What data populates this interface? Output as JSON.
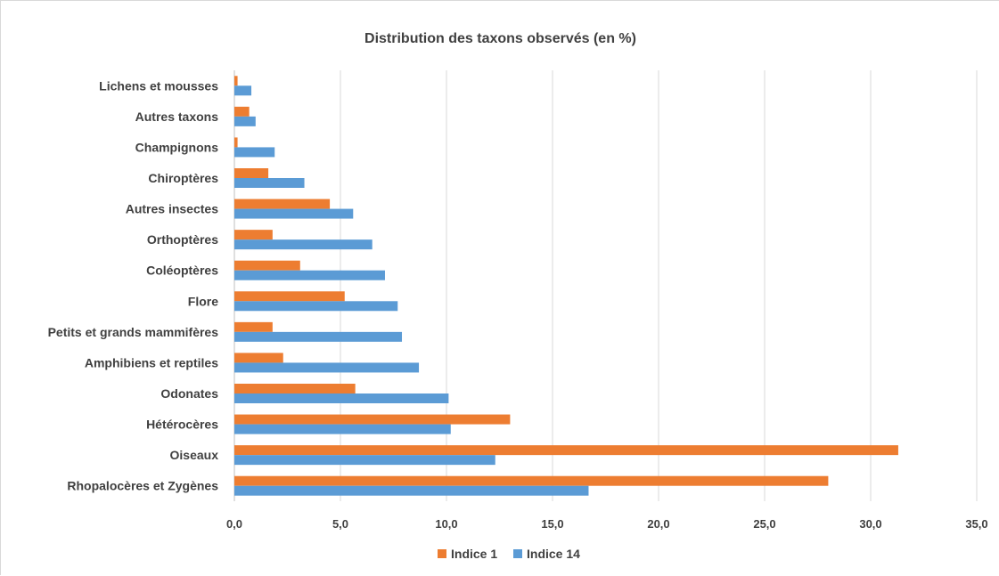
{
  "chart_data": {
    "type": "bar",
    "orientation": "horizontal",
    "title": "Distribution des taxons observés (en %)",
    "xlabel": "",
    "ylabel": "",
    "xlim": [
      0,
      35
    ],
    "x_ticks": [
      "0,0",
      "5,0",
      "10,0",
      "15,0",
      "20,0",
      "25,0",
      "30,0",
      "35,0"
    ],
    "x_tick_values": [
      0,
      5,
      10,
      15,
      20,
      25,
      30,
      35
    ],
    "grid": "vertical",
    "legend_position": "bottom",
    "categories": [
      "Rhopalocères et Zygènes",
      "Oiseaux",
      "Hétérocères",
      "Odonates",
      "Amphibiens et reptiles",
      "Petits et grands mammifères",
      "Flore",
      "Coléoptères",
      "Orthoptères",
      "Autres insectes",
      "Chiroptères",
      "Champignons",
      "Autres taxons",
      "Lichens et mousses"
    ],
    "series": [
      {
        "name": "Indice 1",
        "color": "#ED7D31",
        "values": [
          28.0,
          31.3,
          13.0,
          5.7,
          2.3,
          1.8,
          5.2,
          3.1,
          1.8,
          4.5,
          1.6,
          0.15,
          0.7,
          0.15
        ]
      },
      {
        "name": "Indice 14",
        "color": "#5B9BD5",
        "values": [
          16.7,
          12.3,
          10.2,
          10.1,
          8.7,
          7.9,
          7.7,
          7.1,
          6.5,
          5.6,
          3.3,
          1.9,
          1.0,
          0.8
        ]
      }
    ]
  }
}
